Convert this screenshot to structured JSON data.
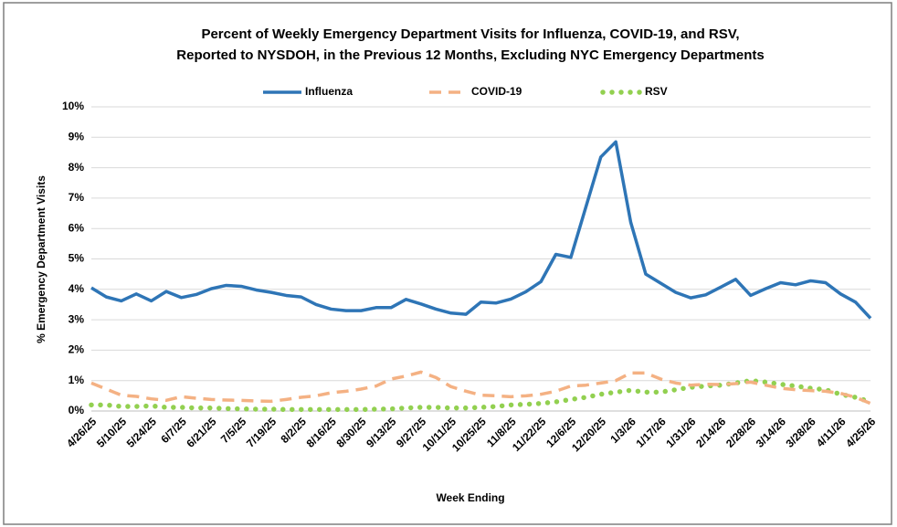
{
  "chart_data": {
    "type": "line",
    "title": [
      "Percent of Weekly Emergency Department Visits for Influenza, COVID-19, and RSV,",
      "Reported to NYSDOH, in the Previous 12 Months, Excluding NYC Emergency Departments"
    ],
    "x_label": "Week Ending",
    "y_label": "% Emergency Department Visits",
    "categories": [
      "4/26/25",
      null,
      "5/10/25",
      null,
      "5/24/25",
      null,
      "6/7/25",
      null,
      "6/21/25",
      null,
      "7/5/25",
      null,
      "7/19/25",
      null,
      "8/2/25",
      null,
      "8/16/25",
      null,
      "8/30/25",
      null,
      "9/13/25",
      null,
      "9/27/25",
      null,
      "10/11/25",
      null,
      "10/25/25",
      null,
      "11/8/25",
      null,
      "11/22/25",
      null,
      "12/6/25",
      null,
      "12/20/25",
      null,
      "1/3/26",
      null,
      "1/17/26",
      null,
      "1/31/26",
      null,
      "2/14/26",
      null,
      "2/28/26",
      null,
      "3/14/26",
      null,
      "3/28/26",
      null,
      "4/11/26",
      null,
      "4/25/26"
    ],
    "series": [
      {
        "name": "Influenza",
        "color": "#2e75b6",
        "style": "solid",
        "values": [
          4.05,
          3.75,
          3.62,
          3.85,
          3.62,
          3.93,
          3.73,
          3.83,
          4.02,
          4.13,
          4.1,
          3.98,
          3.9,
          3.8,
          3.75,
          3.5,
          3.35,
          3.3,
          3.3,
          3.4,
          3.4,
          3.67,
          3.52,
          3.35,
          3.22,
          3.18,
          3.58,
          3.55,
          3.68,
          3.92,
          4.25,
          5.15,
          5.05,
          6.7,
          8.35,
          8.85,
          6.2,
          4.5,
          4.2,
          3.9,
          3.72,
          3.82,
          4.07,
          4.33,
          3.8,
          4.02,
          4.22,
          4.15,
          4.28,
          4.22,
          3.85,
          3.58,
          3.05
        ]
      },
      {
        "name": "COVID-19",
        "color": "#f4b183",
        "style": "dashed",
        "values": [
          0.92,
          0.72,
          0.52,
          0.48,
          0.4,
          0.35,
          0.47,
          0.42,
          0.38,
          0.36,
          0.35,
          0.33,
          0.32,
          0.38,
          0.45,
          0.5,
          0.6,
          0.65,
          0.72,
          0.82,
          1.05,
          1.15,
          1.28,
          1.1,
          0.8,
          0.65,
          0.52,
          0.5,
          0.47,
          0.5,
          0.55,
          0.65,
          0.82,
          0.85,
          0.92,
          1.0,
          1.25,
          1.25,
          1.05,
          0.92,
          0.85,
          0.88,
          0.87,
          0.9,
          0.95,
          0.85,
          0.75,
          0.7,
          0.67,
          0.65,
          0.58,
          0.45,
          0.25
        ]
      },
      {
        "name": "RSV",
        "color": "#92d050",
        "style": "dotted",
        "values": [
          0.2,
          0.2,
          0.15,
          0.15,
          0.17,
          0.12,
          0.12,
          0.1,
          0.1,
          0.08,
          0.07,
          0.06,
          0.06,
          0.05,
          0.05,
          0.05,
          0.05,
          0.05,
          0.05,
          0.06,
          0.07,
          0.1,
          0.12,
          0.12,
          0.1,
          0.1,
          0.12,
          0.15,
          0.2,
          0.22,
          0.25,
          0.3,
          0.38,
          0.45,
          0.55,
          0.62,
          0.68,
          0.62,
          0.62,
          0.7,
          0.78,
          0.82,
          0.85,
          0.92,
          1.0,
          0.95,
          0.88,
          0.82,
          0.75,
          0.7,
          0.55,
          0.45,
          0.3
        ]
      }
    ],
    "ylim": [
      0,
      10
    ],
    "yticks": [
      {
        "value": 0,
        "label": "0%"
      },
      {
        "value": 1,
        "label": "1%"
      },
      {
        "value": 2,
        "label": "2%"
      },
      {
        "value": 3,
        "label": "3%"
      },
      {
        "value": 4,
        "label": "4%"
      },
      {
        "value": 5,
        "label": "5%"
      },
      {
        "value": 6,
        "label": "6%"
      },
      {
        "value": 7,
        "label": "7%"
      },
      {
        "value": 8,
        "label": "8%"
      },
      {
        "value": 9,
        "label": "9%"
      },
      {
        "value": 10,
        "label": "10%"
      }
    ],
    "grid": true,
    "legend": "top"
  }
}
